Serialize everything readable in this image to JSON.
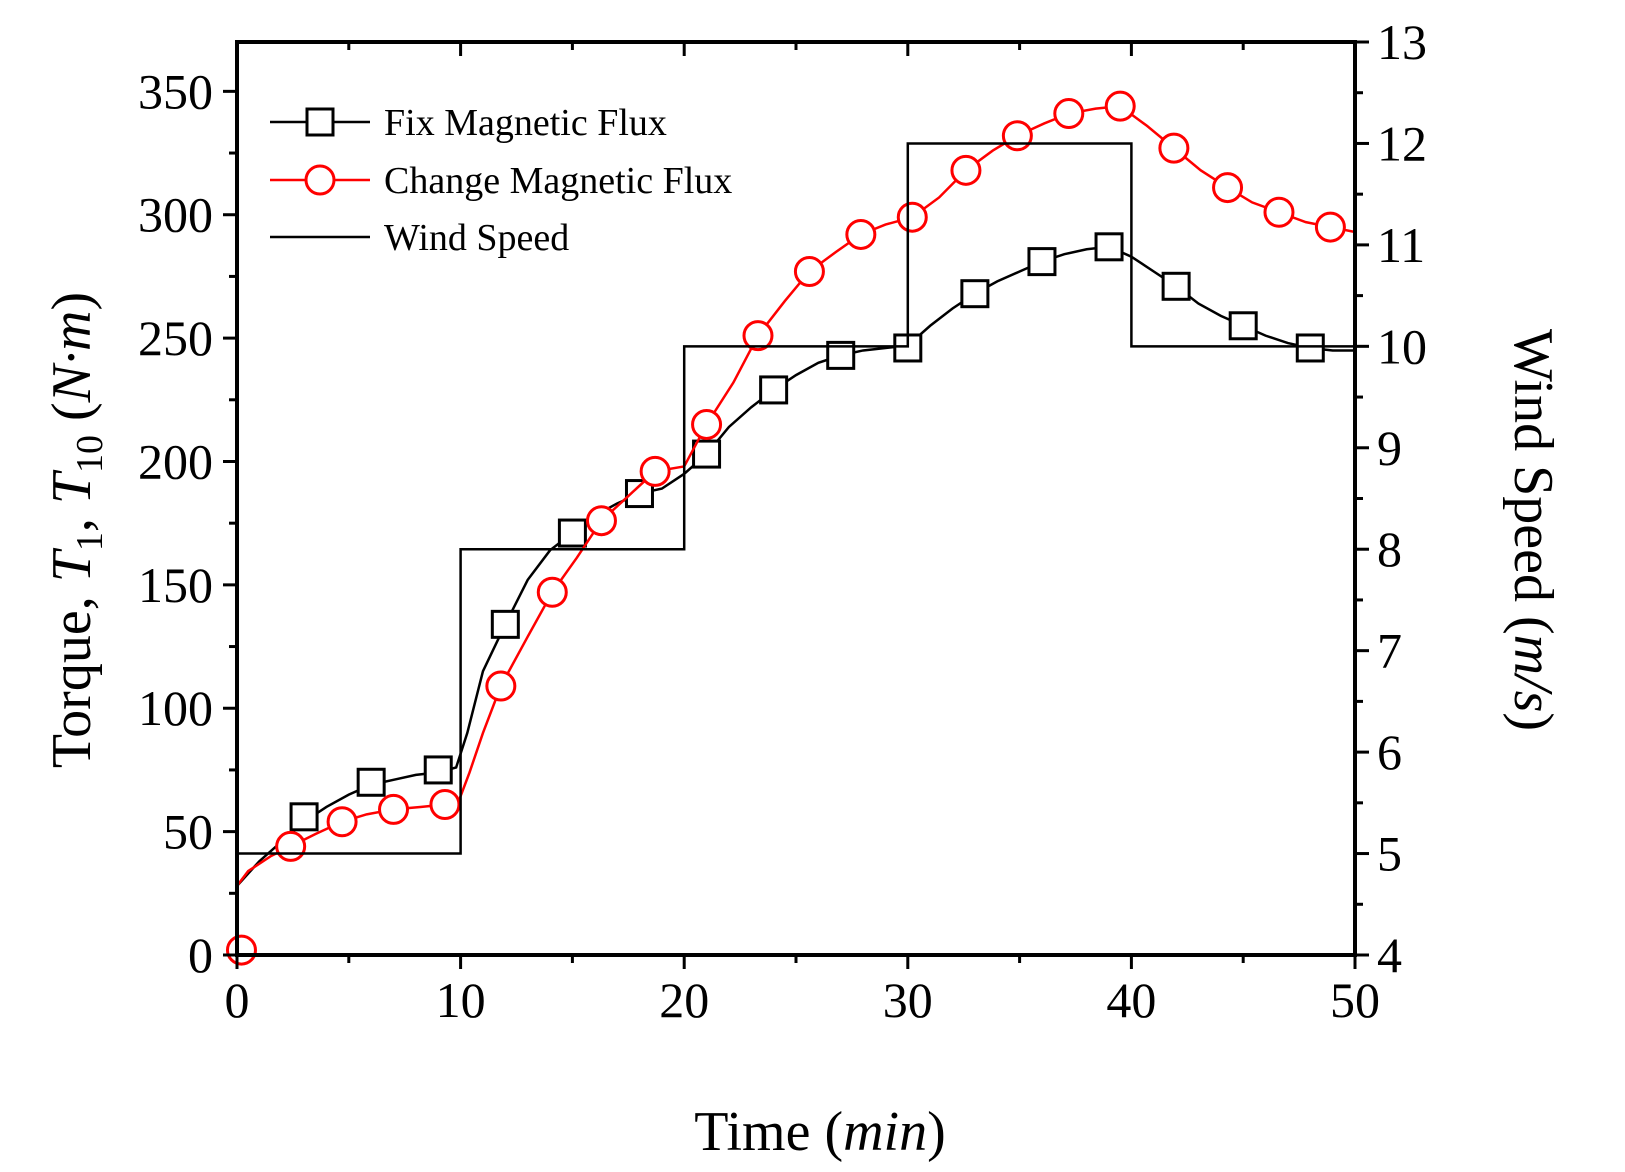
{
  "chart_data": {
    "type": "line",
    "title": "",
    "xlabel": {
      "text": "Time ",
      "unit": "min"
    },
    "ylabel_left": {
      "prefix": "Torque, ",
      "t1": "T",
      "t1_sub": "1",
      "sep": ", ",
      "t10": "T",
      "t10_sub": "10",
      "unit_open": " (",
      "unit": "N·m",
      "unit_close": ")"
    },
    "ylabel_right": {
      "text": "Wind Speed (",
      "unit": "m/s",
      "close": ")"
    },
    "xlim": [
      0,
      50
    ],
    "ylim_left": [
      0,
      370
    ],
    "ylim_right": [
      4,
      13
    ],
    "x_ticks": [
      0,
      10,
      20,
      30,
      40,
      50
    ],
    "y_left_ticks": [
      0,
      50,
      100,
      150,
      200,
      250,
      300,
      350
    ],
    "y_right_ticks": [
      4,
      5,
      6,
      7,
      8,
      9,
      10,
      11,
      12,
      13
    ],
    "legend_position": "top-left",
    "series": [
      {
        "name": "Fix Magnetic Flux",
        "axis": "left",
        "color": "#000000",
        "marker": "square",
        "curve": [
          [
            0,
            28
          ],
          [
            1,
            38
          ],
          [
            2,
            46
          ],
          [
            3,
            54
          ],
          [
            4,
            60
          ],
          [
            5,
            65
          ],
          [
            6,
            69
          ],
          [
            7,
            71
          ],
          [
            8,
            73
          ],
          [
            9,
            74
          ],
          [
            9.8,
            76
          ],
          [
            10.3,
            90
          ],
          [
            11,
            115
          ],
          [
            12,
            134
          ],
          [
            13,
            152
          ],
          [
            14,
            164
          ],
          [
            15,
            171
          ],
          [
            16,
            178
          ],
          [
            17,
            183
          ],
          [
            18,
            187
          ],
          [
            19,
            189
          ],
          [
            20,
            195
          ],
          [
            21,
            203
          ],
          [
            22,
            214
          ],
          [
            23,
            222
          ],
          [
            24,
            229
          ],
          [
            25,
            235
          ],
          [
            26,
            240
          ],
          [
            27,
            243
          ],
          [
            28,
            245
          ],
          [
            29,
            246
          ],
          [
            30,
            247
          ],
          [
            31,
            255
          ],
          [
            32,
            262
          ],
          [
            33,
            268
          ],
          [
            34,
            273
          ],
          [
            35,
            277
          ],
          [
            36,
            281
          ],
          [
            37,
            284
          ],
          [
            38,
            286
          ],
          [
            39,
            287
          ],
          [
            40,
            283
          ],
          [
            41,
            277
          ],
          [
            42,
            271
          ],
          [
            43,
            264
          ],
          [
            44,
            259
          ],
          [
            45,
            255
          ],
          [
            46,
            251
          ],
          [
            47,
            248
          ],
          [
            48,
            246
          ],
          [
            49,
            245
          ],
          [
            50,
            245
          ]
        ],
        "x": [
          3,
          6,
          9,
          12,
          15,
          18,
          21,
          24,
          27,
          30,
          33,
          36,
          39,
          42,
          45,
          48
        ],
        "values": [
          56,
          70,
          75,
          134,
          171,
          187,
          203,
          229,
          243,
          246,
          268,
          281,
          287,
          271,
          255,
          246
        ]
      },
      {
        "name": "Change Magnetic Flux",
        "axis": "left",
        "color": "#ff0000",
        "marker": "circle",
        "curve": [
          [
            0,
            28
          ],
          [
            0.5,
            34
          ],
          [
            1.5,
            40
          ],
          [
            2.4,
            44
          ],
          [
            3.5,
            49
          ],
          [
            4.7,
            54
          ],
          [
            5.8,
            57
          ],
          [
            7,
            59
          ],
          [
            8.2,
            60
          ],
          [
            9.3,
            61
          ],
          [
            9.9,
            62
          ],
          [
            10.4,
            74
          ],
          [
            11,
            90
          ],
          [
            11.8,
            109
          ],
          [
            13,
            129
          ],
          [
            14.1,
            147
          ],
          [
            15.2,
            161
          ],
          [
            16.3,
            176
          ],
          [
            17.5,
            186
          ],
          [
            18.7,
            196
          ],
          [
            20,
            198
          ],
          [
            21,
            215
          ],
          [
            22.2,
            232
          ],
          [
            23.3,
            251
          ],
          [
            24.5,
            265
          ],
          [
            25.6,
            277
          ],
          [
            26.8,
            285
          ],
          [
            27.9,
            292
          ],
          [
            29,
            296
          ],
          [
            30.2,
            299
          ],
          [
            31.4,
            307
          ],
          [
            32.6,
            318
          ],
          [
            33.8,
            326
          ],
          [
            34.9,
            332
          ],
          [
            36.1,
            337
          ],
          [
            37.2,
            341
          ],
          [
            38.4,
            343
          ],
          [
            39.5,
            344
          ],
          [
            40.7,
            336
          ],
          [
            41.9,
            327
          ],
          [
            43.1,
            318
          ],
          [
            44.3,
            311
          ],
          [
            45.4,
            305
          ],
          [
            46.6,
            301
          ],
          [
            47.8,
            297
          ],
          [
            48.9,
            295
          ],
          [
            50,
            293
          ]
        ],
        "x": [
          2.4,
          4.7,
          7.0,
          9.3,
          11.8,
          14.1,
          16.3,
          18.7,
          21.0,
          23.3,
          25.6,
          27.9,
          30.2,
          32.6,
          34.9,
          37.2,
          39.5,
          41.9,
          44.3,
          46.6,
          48.9
        ],
        "values": [
          44,
          54,
          59,
          61,
          109,
          147,
          176,
          196,
          215,
          251,
          277,
          292,
          299,
          318,
          332,
          341,
          344,
          327,
          311,
          301,
          295
        ]
      },
      {
        "name": "Wind Speed",
        "axis": "right",
        "color": "#000000",
        "marker": "none",
        "step": [
          [
            0,
            5
          ],
          [
            10,
            5
          ],
          [
            10,
            8
          ],
          [
            20,
            8
          ],
          [
            20,
            10
          ],
          [
            30,
            10
          ],
          [
            30,
            12
          ],
          [
            40,
            12
          ],
          [
            40,
            10
          ],
          [
            50,
            10
          ]
        ]
      }
    ],
    "extra_points": [
      {
        "series": "Change Magnetic Flux",
        "x": 0.2,
        "y": 2
      }
    ]
  }
}
